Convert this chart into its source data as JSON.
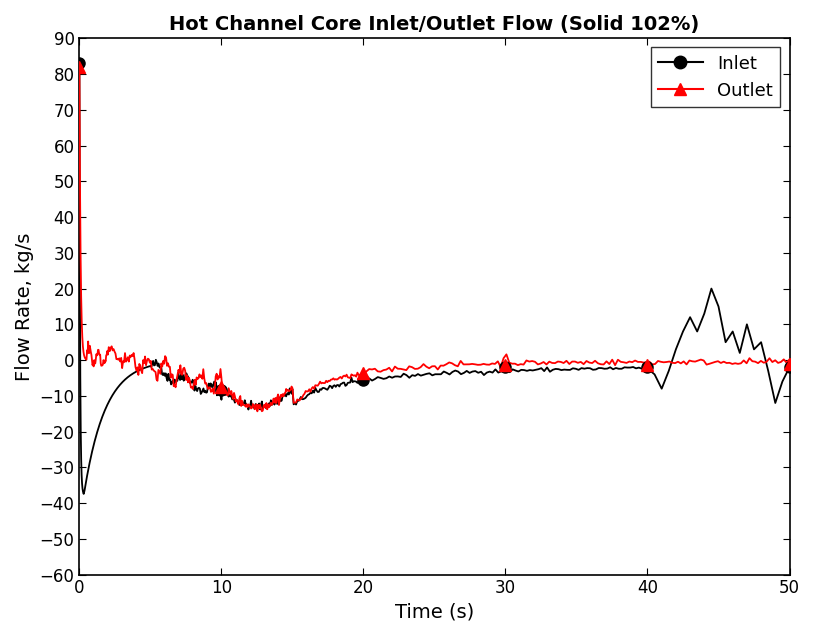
{
  "title": "Hot Channel Core Inlet/Outlet Flow (Solid 102%)",
  "xlabel": "Time (s)",
  "ylabel": "Flow Rate, kg/s",
  "xlim": [
    0,
    50
  ],
  "ylim": [
    -60,
    90
  ],
  "yticks": [
    -60,
    -50,
    -40,
    -30,
    -20,
    -10,
    0,
    10,
    20,
    30,
    40,
    50,
    60,
    70,
    80,
    90
  ],
  "xticks": [
    0,
    10,
    20,
    30,
    40,
    50
  ],
  "inlet_color": "#000000",
  "outlet_color": "#ff0000",
  "inlet_marker": "o",
  "outlet_marker": "^",
  "legend_inlet": "Inlet",
  "legend_outlet": "Outlet",
  "background_color": "#ffffff",
  "inlet_marker_pts_x": [
    0.0,
    10.0,
    20.0,
    30.0,
    40.0,
    50.0
  ],
  "inlet_marker_pts_y": [
    83.0,
    -8.5,
    -5.5,
    -2.0,
    -2.0,
    -2.0
  ],
  "outlet_marker_pts_x": [
    0.0,
    10.0,
    20.0,
    30.0,
    40.0,
    50.0
  ],
  "outlet_marker_pts_y": [
    82.0,
    -7.5,
    -3.5,
    -1.5,
    -1.5,
    -1.0
  ]
}
